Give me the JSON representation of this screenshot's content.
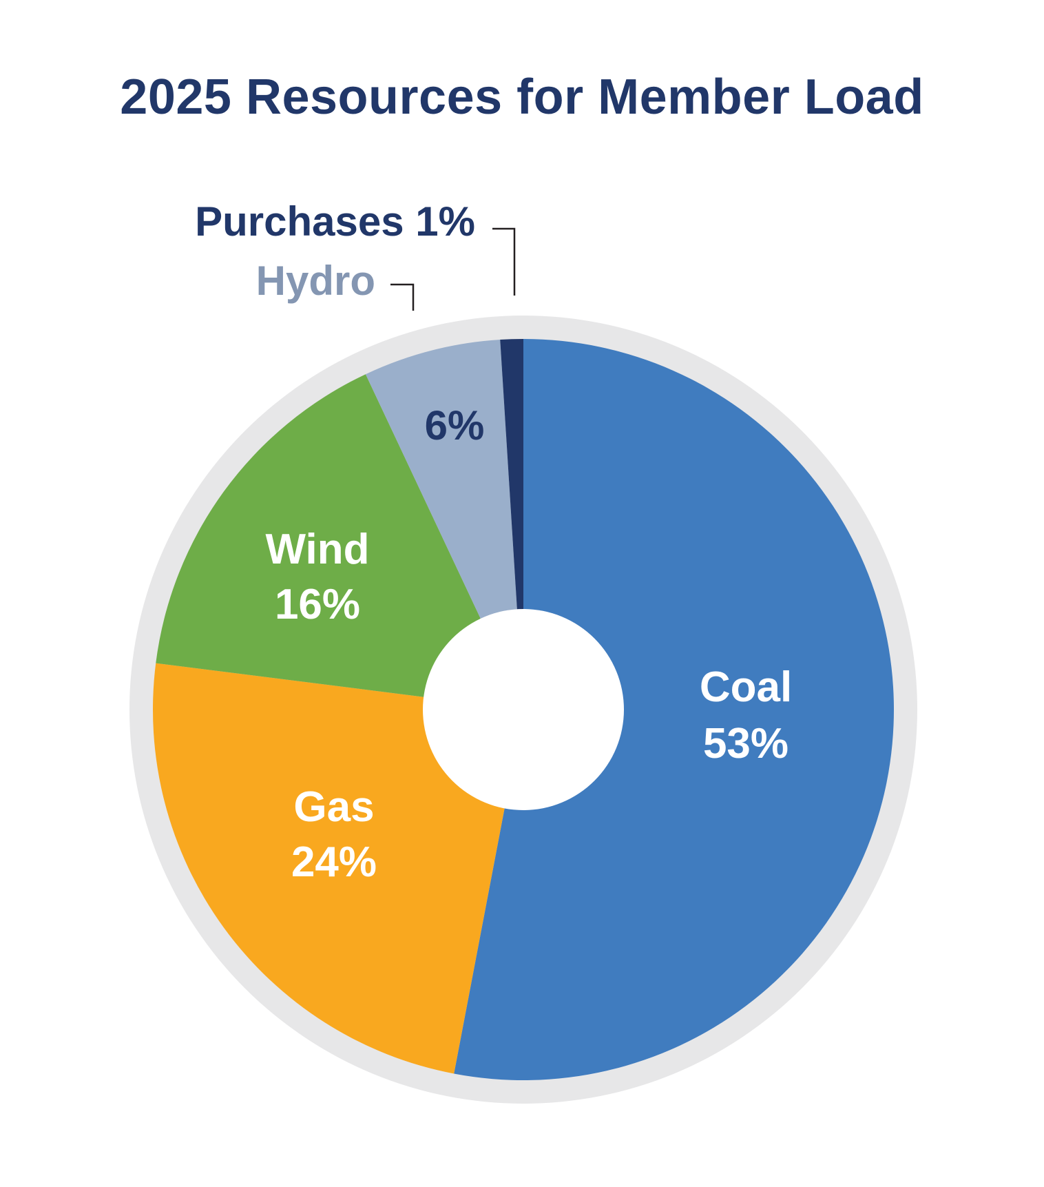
{
  "title": "2025 Resources for Member Load",
  "chart_data": {
    "type": "pie",
    "variant": "donut",
    "title": "2025 Resources for Member Load",
    "categories": [
      "Coal",
      "Gas",
      "Wind",
      "Hydro",
      "Purchases"
    ],
    "values": [
      53,
      24,
      16,
      6,
      1
    ],
    "unit": "%",
    "colors": [
      "#407CBF",
      "#F9A81F",
      "#6EAD48",
      "#9AAFCB",
      "#213769"
    ],
    "labels": [
      {
        "name": "Coal",
        "value": "53%",
        "placement": "inside",
        "color": "#ffffff"
      },
      {
        "name": "Gas",
        "value": "24%",
        "placement": "inside",
        "color": "#ffffff"
      },
      {
        "name": "Wind",
        "value": "16%",
        "placement": "inside",
        "color": "#ffffff"
      },
      {
        "name": "Hydro",
        "value": "6%",
        "placement": "outside-name-inside-value",
        "name_color": "#8496B2",
        "value_color": "#213769"
      },
      {
        "name": "Purchases",
        "value": "1%",
        "placement": "outside",
        "color": "#213769"
      }
    ],
    "start_angle_deg": 0,
    "direction": "clockwise",
    "ring_color": "#E7E7E8",
    "legend": "none"
  },
  "text": {
    "coal_name": "Coal",
    "coal_value": "53%",
    "gas_name": "Gas",
    "gas_value": "24%",
    "wind_name": "Wind",
    "wind_value": "16%",
    "hydro_name": "Hydro",
    "hydro_value": "6%",
    "purchases_label": "Purchases 1%"
  }
}
